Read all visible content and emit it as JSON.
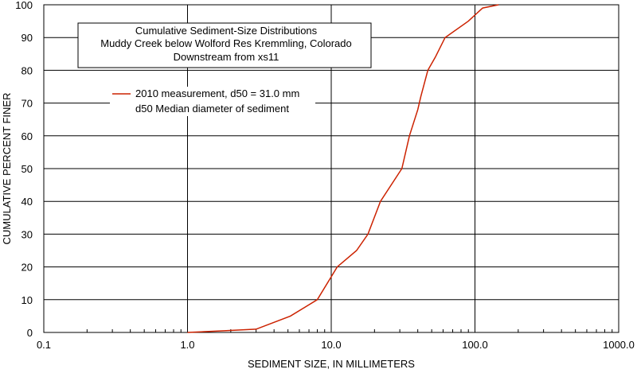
{
  "chart_data": {
    "type": "line",
    "title_lines": [
      "Cumulative Sediment-Size Distributions",
      "Muddy  Creek below Wolford Res Kremmling, Colorado",
      "Downstream from xs11"
    ],
    "xlabel": "SEDIMENT SIZE, IN MILLIMETERS",
    "ylabel": "CUMULATIVE PERCENT FINER",
    "x_scale": "log",
    "xlim": [
      0.1,
      1000
    ],
    "ylim": [
      0,
      100
    ],
    "x_ticks": [
      {
        "value": 0.1,
        "label": "0.1"
      },
      {
        "value": 1,
        "label": "1.0"
      },
      {
        "value": 10,
        "label": "10.0"
      },
      {
        "value": 100,
        "label": "100.0"
      },
      {
        "value": 1000,
        "label": "1000.0"
      }
    ],
    "y_ticks": [
      {
        "value": 0,
        "label": "0"
      },
      {
        "value": 10,
        "label": "10"
      },
      {
        "value": 20,
        "label": "20"
      },
      {
        "value": 30,
        "label": "30"
      },
      {
        "value": 40,
        "label": "40"
      },
      {
        "value": 50,
        "label": "50"
      },
      {
        "value": 60,
        "label": "60"
      },
      {
        "value": 70,
        "label": "70"
      },
      {
        "value": 80,
        "label": "80"
      },
      {
        "value": 90,
        "label": "90"
      },
      {
        "value": 100,
        "label": "100"
      }
    ],
    "grid": true,
    "legend_position": "upper-left",
    "series": [
      {
        "name": "2010 measurement, d50 = 31.0 mm",
        "color": "#cc2200",
        "x": [
          1.0,
          1.8,
          3.0,
          5.2,
          8.0,
          10.0,
          11.0,
          15.0,
          18.0,
          22.0,
          31.0,
          35.0,
          40.0,
          42.0,
          47.0,
          53.0,
          62.0,
          90.0,
          113.0,
          146.0
        ],
        "y": [
          0,
          0.5,
          1,
          5,
          10,
          17,
          20,
          25,
          30,
          40,
          50,
          60,
          68,
          72,
          80,
          84,
          90,
          95,
          99,
          100
        ]
      }
    ],
    "legend_note": "d50  Median diameter of sediment"
  }
}
